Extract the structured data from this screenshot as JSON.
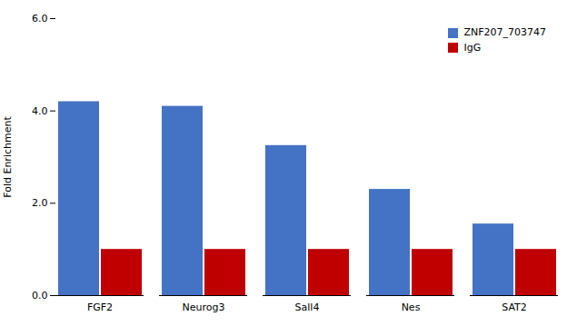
{
  "chart_data": {
    "type": "bar",
    "categories": [
      "FGF2",
      "Neurog3",
      "Sall4",
      "Nes",
      "SAT2"
    ],
    "series": [
      {
        "name": "ZNF207_703747",
        "color": "#4472C4",
        "values": [
          4.2,
          4.1,
          3.25,
          2.3,
          1.55
        ]
      },
      {
        "name": "IgG",
        "color": "#C00000",
        "values": [
          1.0,
          1.0,
          1.0,
          1.0,
          1.0
        ]
      }
    ],
    "ylabel": "Fold Enrichment",
    "ylim": [
      0,
      6
    ],
    "yticks": [
      0,
      2,
      4,
      6
    ],
    "grid": false,
    "legend": "upper right"
  }
}
